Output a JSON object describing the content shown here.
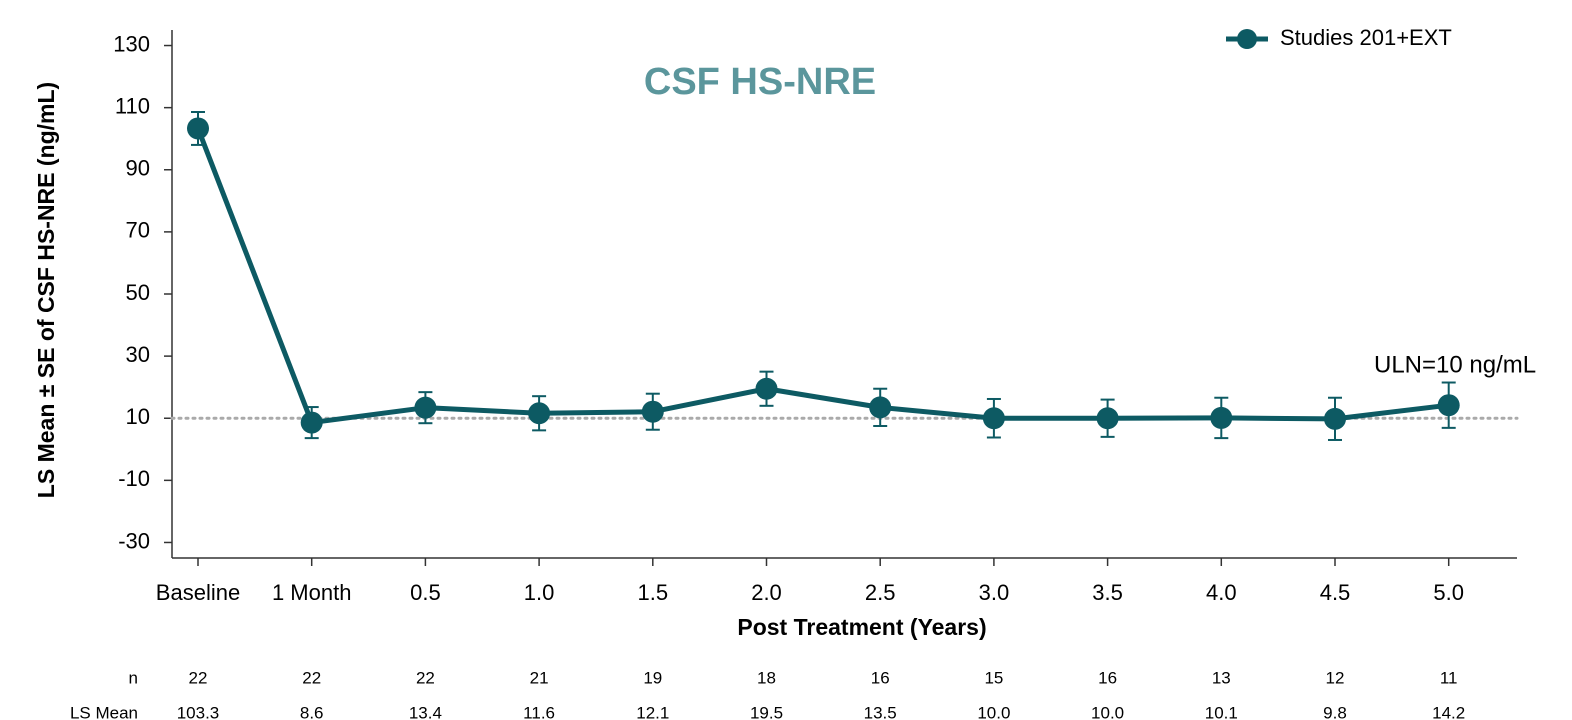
{
  "chart_data": {
    "type": "line",
    "title": "CSF HS-NRE",
    "title_color": "#5b969c",
    "x_label": "Post Treatment (Years)",
    "y_label": "LS Mean ± SE of CSF HS-NRE (ng/mL)",
    "categories": [
      "Baseline",
      "1 Month",
      "0.5",
      "1.0",
      "1.5",
      "2.0",
      "2.5",
      "3.0",
      "3.5",
      "4.0",
      "4.5",
      "5.0"
    ],
    "series": [
      {
        "name": "Studies 201+EXT",
        "color": "#0d5a63",
        "values": [
          103.3,
          8.6,
          13.4,
          11.6,
          12.1,
          19.5,
          13.5,
          10.0,
          10.0,
          10.1,
          9.8,
          14.2
        ],
        "value_labels": [
          "103.3",
          "8.6",
          "13.4",
          "11.6",
          "12.1",
          "19.5",
          "13.5",
          "10.0",
          "10.0",
          "10.1",
          "9.8",
          "14.2"
        ],
        "errors": [
          5.3,
          5,
          5,
          5.5,
          5.8,
          5.5,
          6,
          6.2,
          6,
          6.5,
          6.8,
          7.3
        ]
      }
    ],
    "ylim": [
      -35,
      135
    ],
    "yticks": [
      -30,
      -10,
      10,
      30,
      50,
      70,
      90,
      110,
      130
    ],
    "reference_line": {
      "value": 10,
      "label": "ULN=10 ng/mL",
      "color": "#aaaaaa"
    },
    "legend": "upper right",
    "table": {
      "n_label": "n",
      "n": [
        22,
        22,
        22,
        21,
        19,
        18,
        16,
        15,
        16,
        13,
        12,
        11
      ],
      "mean_label": "LS Mean"
    }
  }
}
